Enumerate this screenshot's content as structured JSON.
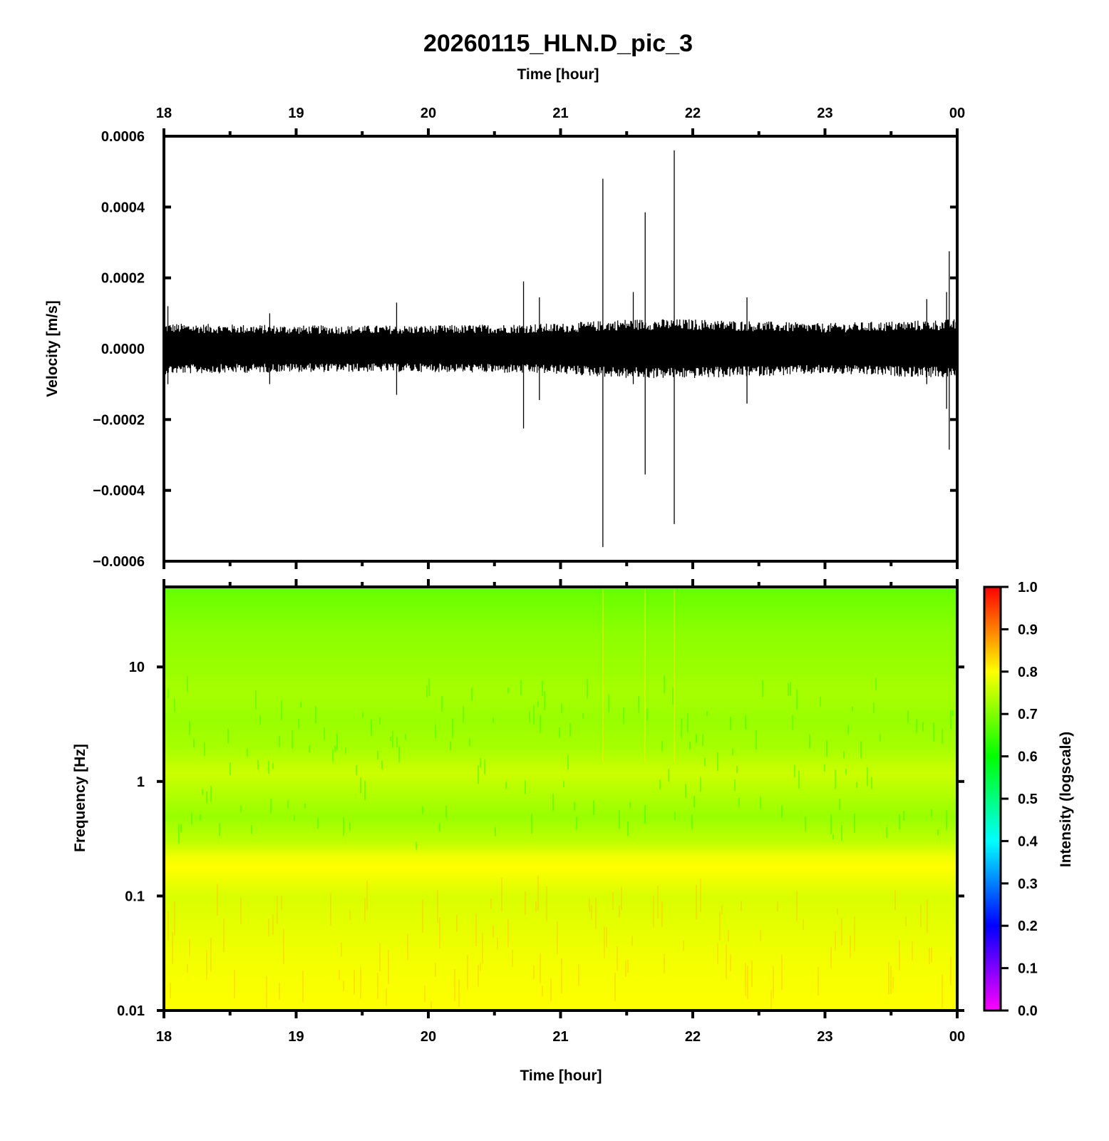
{
  "chart_data": [
    {
      "type": "line",
      "title": "20260115_HLN.D_pic_3",
      "top_xlabel": "Time [hour]",
      "ylabel": "Velocity [m/s]",
      "x_range_hours": [
        18,
        24
      ],
      "x_tick_labels": [
        "18",
        "19",
        "20",
        "21",
        "22",
        "23",
        "00"
      ],
      "ylim": [
        -0.0006,
        0.0006
      ],
      "y_tick_values": [
        -0.0006,
        -0.0004,
        -0.0002,
        0,
        0.0002,
        0.0004,
        0.0006
      ],
      "y_tick_labels": [
        "−0.0006",
        "−0.0004",
        "−0.0002",
        "0.0000",
        "0.0002",
        "0.0004",
        "0.0006"
      ],
      "grid": false,
      "trace_color": "#000000",
      "noise_envelope": {
        "x": [
          18.0,
          19.0,
          20.0,
          21.0,
          21.5,
          22.0,
          23.0,
          24.0
        ],
        "amplitude": [
          6e-05,
          5.5e-05,
          5.5e-05,
          6e-05,
          7e-05,
          7e-05,
          6e-05,
          7e-05
        ]
      },
      "spikes": [
        {
          "x": 18.03,
          "max": 0.00012,
          "min": -0.0001
        },
        {
          "x": 18.8,
          "max": 0.0001,
          "min": -0.0001
        },
        {
          "x": 19.76,
          "max": 0.00013,
          "min": -0.00013
        },
        {
          "x": 20.72,
          "max": 0.00019,
          "min": -0.000225
        },
        {
          "x": 20.84,
          "max": 0.000145,
          "min": -0.000145
        },
        {
          "x": 21.32,
          "max": 0.00048,
          "min": -0.00056
        },
        {
          "x": 21.55,
          "max": 0.00016,
          "min": -0.0001
        },
        {
          "x": 21.64,
          "max": 0.000385,
          "min": -0.000355
        },
        {
          "x": 21.86,
          "max": 0.00056,
          "min": -0.000495
        },
        {
          "x": 22.41,
          "max": 0.000145,
          "min": -0.000155
        },
        {
          "x": 23.77,
          "max": 0.00014,
          "min": -0.0001
        },
        {
          "x": 23.92,
          "max": 0.00016,
          "min": -0.00017
        },
        {
          "x": 23.94,
          "max": 0.000275,
          "min": -0.000285
        }
      ]
    },
    {
      "type": "heatmap",
      "xlabel": "Time [hour]",
      "ylabel": "Frequency [Hz]",
      "x_range_hours": [
        18,
        24
      ],
      "x_tick_labels": [
        "18",
        "19",
        "20",
        "21",
        "22",
        "23",
        "00"
      ],
      "y_scale": "log",
      "ylim": [
        0.01,
        50
      ],
      "y_tick_values": [
        0.01,
        0.1,
        1,
        10
      ],
      "y_tick_labels": [
        "0.01",
        "0.1",
        "1",
        "10"
      ],
      "colorbar": {
        "label": "Intensity (logscale)",
        "range": [
          0,
          1
        ],
        "tick_values": [
          0,
          0.1,
          0.2,
          0.3,
          0.4,
          0.5,
          0.6,
          0.7,
          0.8,
          0.9,
          1.0
        ],
        "tick_labels": [
          "0.0",
          "0.1",
          "0.2",
          "0.3",
          "0.4",
          "0.5",
          "0.6",
          "0.7",
          "0.8",
          "0.9",
          "1.0"
        ],
        "colors": [
          "#ff00ff",
          "#0000ff",
          "#00ffff",
          "#00ff00",
          "#ffff00",
          "#ff0000"
        ]
      },
      "intensity_profile": {
        "frequency_hz": [
          0.01,
          0.03,
          0.1,
          0.18,
          0.22,
          0.3,
          0.5,
          0.8,
          1.2,
          2,
          3.5,
          6,
          10,
          20,
          35,
          50
        ],
        "intensity": [
          0.8,
          0.79,
          0.77,
          0.8,
          0.79,
          0.75,
          0.72,
          0.74,
          0.76,
          0.73,
          0.72,
          0.73,
          0.72,
          0.71,
          0.69,
          0.68
        ]
      },
      "event_columns_hours": [
        21.32,
        21.64,
        21.86
      ]
    }
  ]
}
